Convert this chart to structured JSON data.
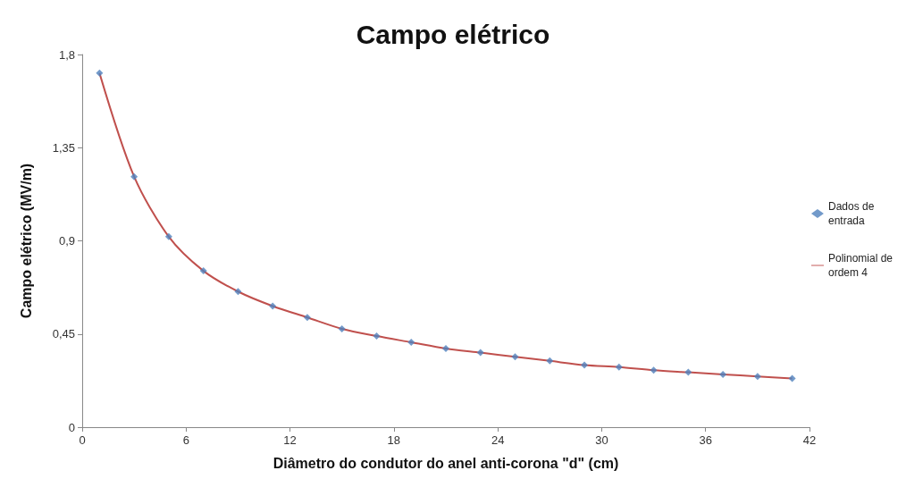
{
  "chart_data": {
    "type": "scatter",
    "title": "Campo elétrico",
    "xlabel": "Diâmetro do condutor do anel anti-corona \"d\" (cm)",
    "ylabel": "Campo elétrico (MV/m)",
    "x": [
      1,
      3,
      5,
      7,
      9,
      11,
      13,
      15,
      17,
      19,
      21,
      23,
      25,
      27,
      29,
      31,
      33,
      35,
      37,
      39,
      41
    ],
    "series": [
      {
        "name": "Dados de entrada",
        "marker": "diamond",
        "color": "#4f81bd",
        "values": [
          1.71,
          1.21,
          0.92,
          0.755,
          0.655,
          0.585,
          0.53,
          0.475,
          0.44,
          0.41,
          0.38,
          0.36,
          0.34,
          0.32,
          0.3,
          0.29,
          0.275,
          0.265,
          0.255,
          0.245,
          0.235
        ]
      },
      {
        "name": "Polinomial de ordem 4",
        "type": "line",
        "marker": "none",
        "line_style": "solid",
        "color": "#c0504d",
        "values": [
          1.71,
          1.21,
          0.92,
          0.755,
          0.655,
          0.585,
          0.53,
          0.475,
          0.44,
          0.41,
          0.38,
          0.36,
          0.34,
          0.32,
          0.3,
          0.29,
          0.275,
          0.265,
          0.255,
          0.245,
          0.235
        ]
      }
    ],
    "xlim": [
      0,
      42
    ],
    "xticks": [
      0,
      6,
      12,
      18,
      24,
      30,
      36,
      42
    ],
    "ylim": [
      0,
      1.8
    ],
    "yticks": [
      0,
      {
        "value": 0.45,
        "label": "0,45"
      },
      {
        "value": 0.9,
        "label": "0,9"
      },
      {
        "value": 1.35,
        "label": "1,35"
      },
      {
        "value": 1.8,
        "label": "1,8"
      }
    ],
    "grid": false,
    "legend": "right"
  }
}
